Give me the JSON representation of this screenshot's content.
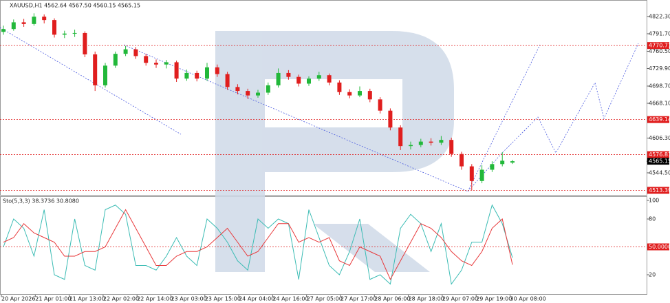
{
  "chart_data": [
    {
      "type": "candlestick",
      "title": "XAUUSD,H1  4562.64 4567.50 4560.15 4565.15",
      "up_color": "#22b83a",
      "down_color": "#e01e1e",
      "level_color": "#e01e1e",
      "ylim": [
        4505.3,
        4849.2
      ],
      "yticks": [
        {
          "value": 4822.3,
          "label": "4822.30"
        },
        {
          "value": 4791.7,
          "label": "4791.70"
        },
        {
          "value": 4760.5,
          "label": "4760.50"
        },
        {
          "value": 4729.9,
          "label": "4729.90"
        },
        {
          "value": 4698.7,
          "label": "4698.70"
        },
        {
          "value": 4668.1,
          "label": "4668.10"
        },
        {
          "value": 4606.3,
          "label": "4606.30"
        },
        {
          "value": 4544.5,
          "label": "4544.50"
        }
      ],
      "levels": [
        {
          "value": 4770.71,
          "label": "4770.71"
        },
        {
          "value": 4639.14,
          "label": "4639.14"
        },
        {
          "value": 4576.81,
          "label": "4576.81"
        },
        {
          "value": 4513.39,
          "label": "4513.39"
        }
      ],
      "current": {
        "value": 4565.15,
        "label": "4565.15"
      },
      "x_labels": [
        "20 Apr 2026",
        "21 Apr 01:00",
        "21 Apr 13:00",
        "22 Apr 02:00",
        "22 Apr 14:00",
        "23 Apr 03:00",
        "23 Apr 15:00",
        "24 Apr 04:00",
        "24 Apr 16:00",
        "27 Apr 05:00",
        "27 Apr 17:00",
        "28 Apr 06:00",
        "28 Apr 18:00",
        "29 Apr 07:00",
        "29 Apr 19:00",
        "30 Apr 08:00"
      ],
      "candles": [
        [
          4795,
          4806,
          4790,
          4800
        ],
        [
          4800,
          4817,
          4797,
          4812
        ],
        [
          4812,
          4818,
          4804,
          4809
        ],
        [
          4809,
          4828,
          4806,
          4822
        ],
        [
          4822,
          4826,
          4810,
          4816
        ],
        [
          4816,
          4819,
          4785,
          4790
        ],
        [
          4790,
          4797,
          4784,
          4792
        ],
        [
          4792,
          4799,
          4786,
          4793
        ],
        [
          4793,
          4796,
          4750,
          4755
        ],
        [
          4755,
          4760,
          4690,
          4700
        ],
        [
          4700,
          4740,
          4696,
          4735
        ],
        [
          4735,
          4760,
          4731,
          4756
        ],
        [
          4756,
          4770,
          4752,
          4764
        ],
        [
          4764,
          4768,
          4747,
          4752
        ],
        [
          4752,
          4756,
          4735,
          4740
        ],
        [
          4740,
          4746,
          4731,
          4737
        ],
        [
          4737,
          4745,
          4730,
          4741
        ],
        [
          4741,
          4744,
          4706,
          4712
        ],
        [
          4712,
          4728,
          4708,
          4722
        ],
        [
          4722,
          4726,
          4707,
          4712
        ],
        [
          4712,
          4740,
          4708,
          4732
        ],
        [
          4732,
          4737,
          4715,
          4720
        ],
        [
          4720,
          4724,
          4692,
          4697
        ],
        [
          4697,
          4702,
          4684,
          4690
        ],
        [
          4690,
          4694,
          4676,
          4682
        ],
        [
          4682,
          4692,
          4678,
          4687
        ],
        [
          4687,
          4705,
          4683,
          4700
        ],
        [
          4700,
          4730,
          4696,
          4722
        ],
        [
          4722,
          4727,
          4710,
          4715
        ],
        [
          4715,
          4719,
          4698,
          4703
        ],
        [
          4703,
          4716,
          4699,
          4712
        ],
        [
          4712,
          4724,
          4708,
          4718
        ],
        [
          4718,
          4721,
          4700,
          4705
        ],
        [
          4705,
          4709,
          4683,
          4688
        ],
        [
          4688,
          4693,
          4677,
          4682
        ],
        [
          4682,
          4698,
          4679,
          4690
        ],
        [
          4690,
          4694,
          4670,
          4675
        ],
        [
          4675,
          4679,
          4650,
          4655
        ],
        [
          4655,
          4659,
          4620,
          4625
        ],
        [
          4625,
          4629,
          4585,
          4592
        ],
        [
          4592,
          4600,
          4586,
          4594
        ],
        [
          4594,
          4605,
          4590,
          4600
        ],
        [
          4600,
          4606,
          4593,
          4598
        ],
        [
          4598,
          4610,
          4594,
          4603
        ],
        [
          4603,
          4607,
          4573,
          4578
        ],
        [
          4578,
          4582,
          4550,
          4556
        ],
        [
          4556,
          4560,
          4513.39,
          4530
        ],
        [
          4530,
          4558,
          4526,
          4550
        ],
        [
          4550,
          4565,
          4546,
          4560
        ],
        [
          4560,
          4581,
          4556,
          4566
        ],
        [
          4562.64,
          4567.5,
          4560.15,
          4565.15
        ]
      ]
    },
    {
      "type": "stochastic",
      "title": "Sto(5,3,3) 38.3736 30.8080",
      "ylim": [
        0,
        100
      ],
      "yticks": [
        20,
        80,
        100
      ],
      "levels": [
        {
          "value": 50,
          "label": "50.0000"
        }
      ],
      "level_color": "#e01e1e",
      "series": [
        {
          "color": "#3bbcb4",
          "values": [
            50,
            80,
            70,
            40,
            90,
            20,
            15,
            80,
            30,
            25,
            90,
            95,
            85,
            30,
            30,
            25,
            40,
            60,
            40,
            30,
            80,
            70,
            55,
            35,
            25,
            80,
            70,
            80,
            75,
            15,
            90,
            60,
            30,
            20,
            45,
            80,
            15,
            20,
            10,
            70,
            85,
            75,
            45,
            75,
            10,
            25,
            55,
            55,
            95,
            75,
            38.3736
          ]
        },
        {
          "color": "#e8383a",
          "values": [
            55,
            60,
            75,
            65,
            60,
            55,
            40,
            40,
            45,
            45,
            50,
            70,
            90,
            70,
            50,
            30,
            30,
            40,
            45,
            45,
            50,
            60,
            70,
            55,
            40,
            45,
            60,
            75,
            75,
            55,
            60,
            55,
            60,
            35,
            30,
            50,
            45,
            40,
            15,
            35,
            55,
            75,
            70,
            60,
            45,
            35,
            30,
            45,
            70,
            80,
            30.808
          ]
        }
      ]
    }
  ]
}
